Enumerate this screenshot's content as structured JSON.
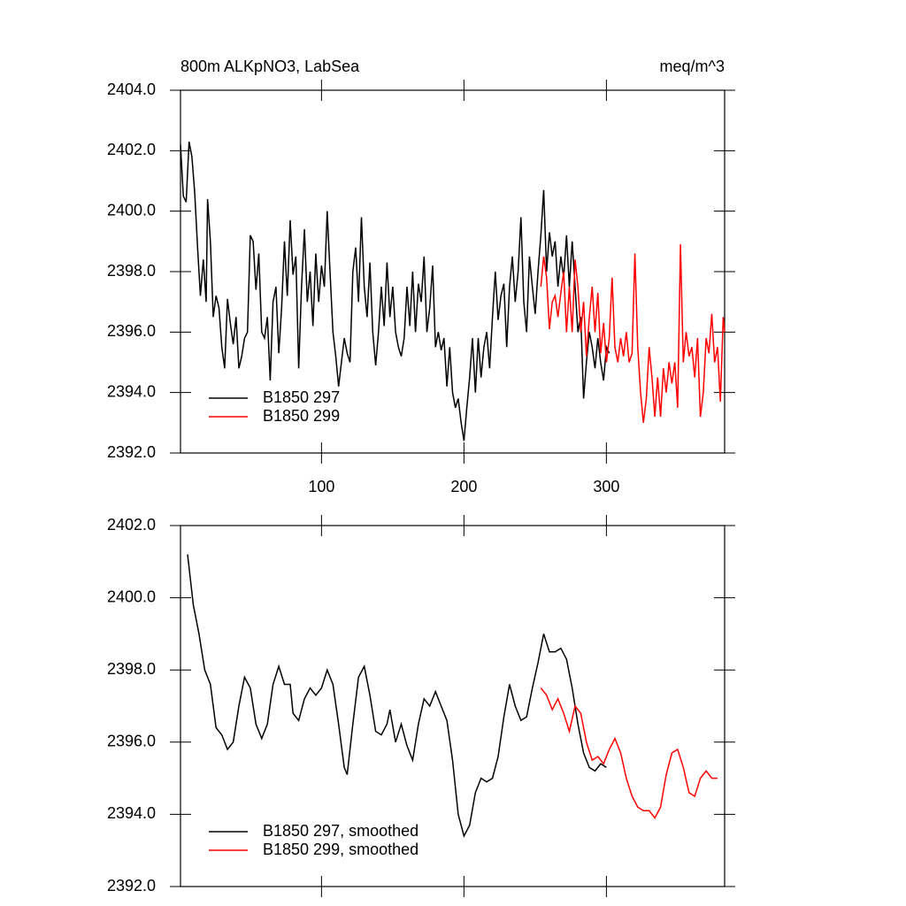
{
  "chart_data": [
    {
      "type": "line",
      "title": "800m ALKpNO3, LabSea",
      "right_title": "meq/m^3",
      "xlim": [
        1,
        383
      ],
      "xticks": [
        100,
        200,
        300
      ],
      "xtick_labels_shown": true,
      "ylim": [
        2392,
        2404
      ],
      "yticks": [
        {
          "value": 2392,
          "label": "2392.0"
        },
        {
          "value": 2394,
          "label": "2394.0"
        },
        {
          "value": 2396,
          "label": "2396.0"
        },
        {
          "value": 2398,
          "label": "2398.0"
        },
        {
          "value": 2400,
          "label": "2400.0"
        },
        {
          "value": 2402,
          "label": "2402.0"
        },
        {
          "value": 2404,
          "label": "2404.0"
        }
      ],
      "legend": "lower left",
      "series": [
        {
          "name": "B1850 297",
          "color": "#000000",
          "x": [
            1,
            3,
            5,
            7,
            9,
            11,
            13,
            15,
            17,
            19,
            20,
            22,
            24,
            26,
            28,
            30,
            32,
            34,
            36,
            38,
            40,
            42,
            44,
            46,
            48,
            50,
            52,
            54,
            56,
            58,
            60,
            62,
            64,
            66,
            68,
            70,
            72,
            74,
            76,
            78,
            80,
            82,
            84,
            86,
            88,
            90,
            92,
            94,
            96,
            98,
            100,
            102,
            104,
            106,
            108,
            110,
            112,
            114,
            116,
            118,
            120,
            122,
            124,
            126,
            128,
            130,
            132,
            134,
            136,
            138,
            140,
            142,
            144,
            146,
            148,
            150,
            152,
            154,
            156,
            158,
            160,
            162,
            164,
            166,
            168,
            170,
            172,
            174,
            176,
            178,
            180,
            182,
            184,
            186,
            188,
            190,
            192,
            194,
            196,
            198,
            200,
            202,
            204,
            206,
            208,
            210,
            212,
            214,
            216,
            218,
            220,
            222,
            224,
            226,
            228,
            230,
            232,
            234,
            236,
            238,
            240,
            242,
            244,
            246,
            248,
            250,
            252,
            254,
            256,
            258,
            260,
            262,
            264,
            266,
            268,
            270,
            272,
            274,
            276,
            278,
            280,
            282,
            284,
            286,
            288,
            290,
            292,
            294,
            296,
            298,
            300,
            302
          ],
          "values": [
            2402.2,
            2400.5,
            2400.3,
            2402.3,
            2401.8,
            2400.6,
            2398.8,
            2397.2,
            2398.4,
            2397.0,
            2400.4,
            2399.0,
            2396.5,
            2397.2,
            2396.8,
            2395.5,
            2394.8,
            2397.1,
            2396.3,
            2395.6,
            2396.5,
            2394.8,
            2395.2,
            2395.8,
            2396.0,
            2399.2,
            2399.0,
            2397.4,
            2398.6,
            2396.0,
            2395.8,
            2396.5,
            2394.4,
            2397.0,
            2397.5,
            2395.3,
            2396.8,
            2399.0,
            2397.2,
            2399.7,
            2397.9,
            2398.5,
            2394.8,
            2397.5,
            2399.4,
            2397.0,
            2398.0,
            2396.2,
            2398.6,
            2397.0,
            2398.2,
            2397.5,
            2400.0,
            2398.0,
            2396.0,
            2395.2,
            2394.2,
            2395.0,
            2395.8,
            2395.3,
            2395.0,
            2398.0,
            2398.8,
            2397.0,
            2399.8,
            2397.5,
            2396.5,
            2398.3,
            2396.0,
            2394.9,
            2396.0,
            2397.5,
            2396.2,
            2398.3,
            2396.5,
            2397.5,
            2396.0,
            2395.5,
            2395.2,
            2395.8,
            2397.5,
            2396.2,
            2398.0,
            2396.0,
            2397.6,
            2397.0,
            2398.5,
            2396.0,
            2396.8,
            2398.2,
            2395.5,
            2396.0,
            2395.4,
            2395.8,
            2394.2,
            2395.5,
            2394.0,
            2393.5,
            2393.8,
            2393.0,
            2392.4,
            2393.5,
            2394.5,
            2395.8,
            2394.0,
            2395.8,
            2394.5,
            2395.5,
            2396.0,
            2394.8,
            2396.5,
            2398.0,
            2396.4,
            2397.2,
            2397.6,
            2395.5,
            2397.5,
            2398.5,
            2397.0,
            2398.0,
            2399.8,
            2397.0,
            2396.0,
            2398.5,
            2397.5,
            2396.6,
            2398.0,
            2399.2,
            2400.7,
            2398.0,
            2399.3,
            2398.5,
            2399.0,
            2397.5,
            2398.5,
            2397.8,
            2399.2,
            2397.5,
            2399.0,
            2397.5,
            2396.0,
            2396.5,
            2393.8,
            2395.0,
            2396.0,
            2395.5,
            2394.8,
            2395.8,
            2395.0,
            2394.4,
            2395.5,
            2395.3
          ]
        },
        {
          "name": "B1850 299",
          "color": "#ff0000",
          "x": [
            254,
            256,
            258,
            260,
            262,
            264,
            266,
            268,
            270,
            272,
            274,
            276,
            278,
            280,
            282,
            284,
            286,
            288,
            290,
            292,
            294,
            296,
            298,
            300,
            302,
            304,
            306,
            308,
            310,
            312,
            314,
            316,
            318,
            320,
            322,
            324,
            326,
            328,
            330,
            332,
            334,
            336,
            338,
            340,
            342,
            344,
            346,
            348,
            350,
            352,
            354,
            356,
            358,
            360,
            362,
            364,
            366,
            368,
            370,
            372,
            374,
            376,
            378,
            380,
            382,
            383
          ],
          "values": [
            2397.5,
            2398.5,
            2397.8,
            2396.1,
            2397.0,
            2397.2,
            2396.5,
            2397.3,
            2398.0,
            2396.0,
            2397.5,
            2396.0,
            2398.4,
            2397.5,
            2396.0,
            2397.0,
            2395.2,
            2396.5,
            2397.5,
            2396.0,
            2397.3,
            2395.3,
            2396.3,
            2395.0,
            2395.8,
            2397.8,
            2395.5,
            2395.0,
            2395.8,
            2395.2,
            2396.0,
            2395.0,
            2395.3,
            2398.6,
            2395.5,
            2394.0,
            2393.0,
            2393.8,
            2395.5,
            2394.5,
            2393.2,
            2394.5,
            2393.2,
            2394.8,
            2394.0,
            2395.0,
            2394.3,
            2395.0,
            2393.5,
            2398.9,
            2395.0,
            2396.0,
            2395.2,
            2395.5,
            2394.5,
            2395.8,
            2393.2,
            2394.0,
            2395.8,
            2395.3,
            2396.6,
            2395.0,
            2395.5,
            2393.7,
            2396.5,
            2396.0
          ]
        }
      ]
    },
    {
      "type": "line",
      "xlim": [
        1,
        383
      ],
      "xticks": [
        100,
        200,
        300
      ],
      "xtick_labels_shown": false,
      "ylim": [
        2392,
        2402
      ],
      "yticks": [
        {
          "value": 2392,
          "label": "2392.0"
        },
        {
          "value": 2394,
          "label": "2394.0"
        },
        {
          "value": 2396,
          "label": "2396.0"
        },
        {
          "value": 2398,
          "label": "2398.0"
        },
        {
          "value": 2400,
          "label": "2400.0"
        },
        {
          "value": 2402,
          "label": "2402.0"
        }
      ],
      "legend": "lower left",
      "series": [
        {
          "name": "B1850 297, smoothed",
          "color": "#000000",
          "x": [
            6,
            10,
            14,
            18,
            22,
            26,
            30,
            34,
            38,
            42,
            46,
            50,
            54,
            58,
            62,
            66,
            70,
            74,
            78,
            80,
            84,
            88,
            92,
            96,
            100,
            104,
            108,
            112,
            116,
            118,
            122,
            126,
            130,
            134,
            138,
            142,
            146,
            148,
            152,
            156,
            160,
            164,
            168,
            172,
            176,
            180,
            184,
            188,
            192,
            196,
            200,
            204,
            208,
            212,
            216,
            220,
            224,
            228,
            232,
            236,
            240,
            244,
            248,
            252,
            256,
            260,
            264,
            268,
            272,
            276,
            280,
            284,
            288,
            292,
            296,
            300
          ],
          "values": [
            2401.2,
            2399.8,
            2399.0,
            2398.0,
            2397.6,
            2396.4,
            2396.2,
            2395.8,
            2396.0,
            2397.0,
            2397.8,
            2397.5,
            2396.5,
            2396.1,
            2396.5,
            2397.6,
            2398.1,
            2397.6,
            2397.6,
            2396.8,
            2396.6,
            2397.2,
            2397.5,
            2397.3,
            2397.5,
            2398.0,
            2397.6,
            2396.5,
            2395.3,
            2395.1,
            2396.5,
            2397.8,
            2398.1,
            2397.3,
            2396.3,
            2396.2,
            2396.5,
            2396.9,
            2396.0,
            2396.5,
            2395.9,
            2395.5,
            2396.5,
            2397.2,
            2397.0,
            2397.4,
            2397.0,
            2396.6,
            2395.5,
            2394.0,
            2393.4,
            2393.7,
            2394.6,
            2395.0,
            2394.9,
            2395.0,
            2395.6,
            2396.7,
            2397.6,
            2397.0,
            2396.6,
            2396.7,
            2397.5,
            2398.2,
            2399.0,
            2398.5,
            2398.5,
            2398.6,
            2398.3,
            2397.5,
            2396.5,
            2395.7,
            2395.3,
            2395.2,
            2395.4,
            2395.3
          ]
        },
        {
          "name": "B1850 299, smoothed",
          "color": "#ff0000",
          "x": [
            254,
            258,
            262,
            266,
            270,
            274,
            278,
            282,
            286,
            290,
            294,
            298,
            302,
            306,
            310,
            314,
            318,
            322,
            326,
            330,
            334,
            338,
            342,
            346,
            350,
            354,
            358,
            362,
            366,
            370,
            374,
            378
          ],
          "values": [
            2397.5,
            2397.3,
            2396.9,
            2397.2,
            2396.8,
            2396.3,
            2397.0,
            2396.8,
            2396.0,
            2395.5,
            2395.6,
            2395.4,
            2395.8,
            2396.1,
            2395.7,
            2395.0,
            2394.5,
            2394.2,
            2394.1,
            2394.1,
            2393.9,
            2394.2,
            2395.1,
            2395.7,
            2395.8,
            2395.3,
            2394.6,
            2394.5,
            2395.0,
            2395.2,
            2395.0,
            2395.0
          ]
        }
      ]
    }
  ]
}
